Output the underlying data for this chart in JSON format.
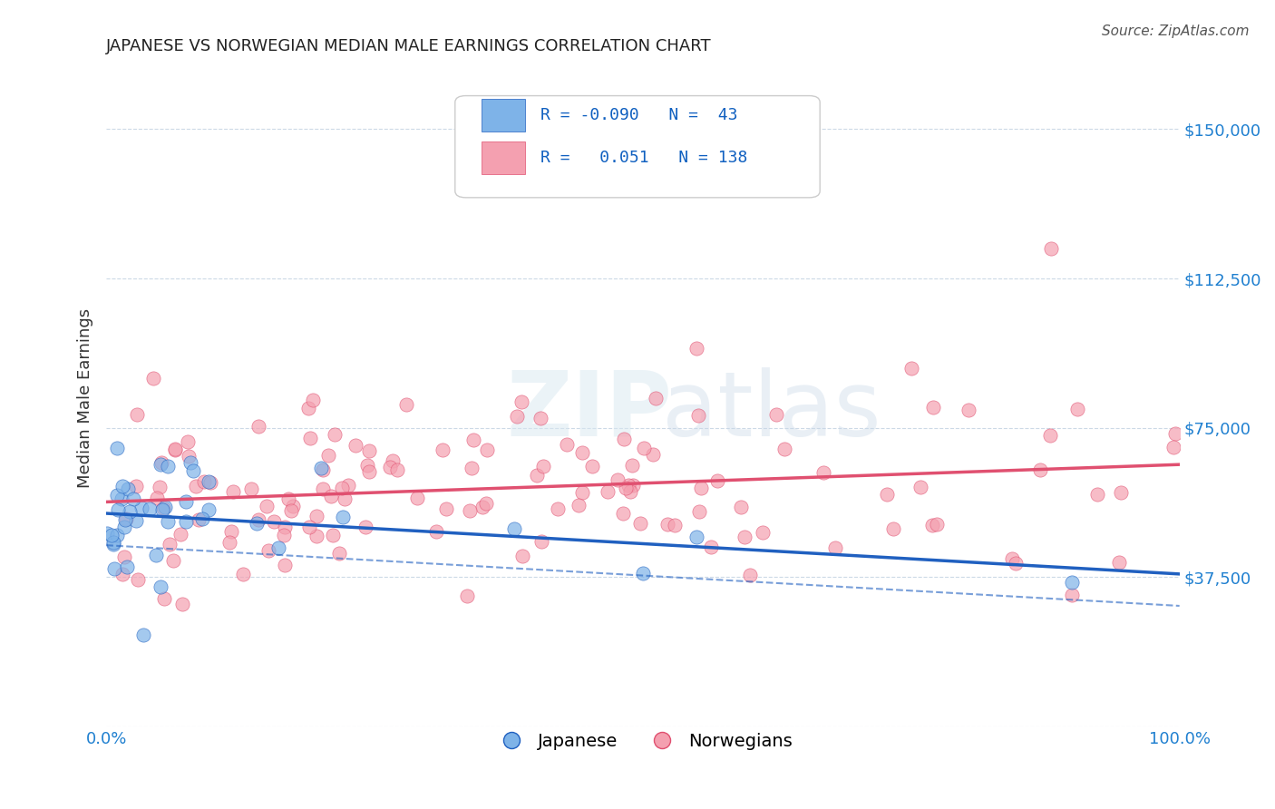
{
  "title": "JAPANESE VS NORWEGIAN MEDIAN MALE EARNINGS CORRELATION CHART",
  "source": "Source: ZipAtlas.com",
  "xlabel": "",
  "ylabel": "Median Male Earnings",
  "xlim": [
    0.0,
    1.0
  ],
  "ylim": [
    0,
    165000
  ],
  "yticks": [
    0,
    37500,
    75000,
    112500,
    150000
  ],
  "ytick_labels": [
    "",
    "$37,500",
    "$75,000",
    "$112,500",
    "$150,000"
  ],
  "xtick_labels": [
    "0.0%",
    "100.0%"
  ],
  "legend_R_japanese": "-0.090",
  "legend_N_japanese": "43",
  "legend_R_norwegian": "0.051",
  "legend_N_norwegian": "138",
  "japanese_color": "#7eb3e8",
  "norwegian_color": "#f4a0b0",
  "japanese_line_color": "#2060c0",
  "norwegian_line_color": "#e05070",
  "background_color": "#ffffff",
  "watermark_zip": "ZIP",
  "watermark_atlas": "atlas"
}
